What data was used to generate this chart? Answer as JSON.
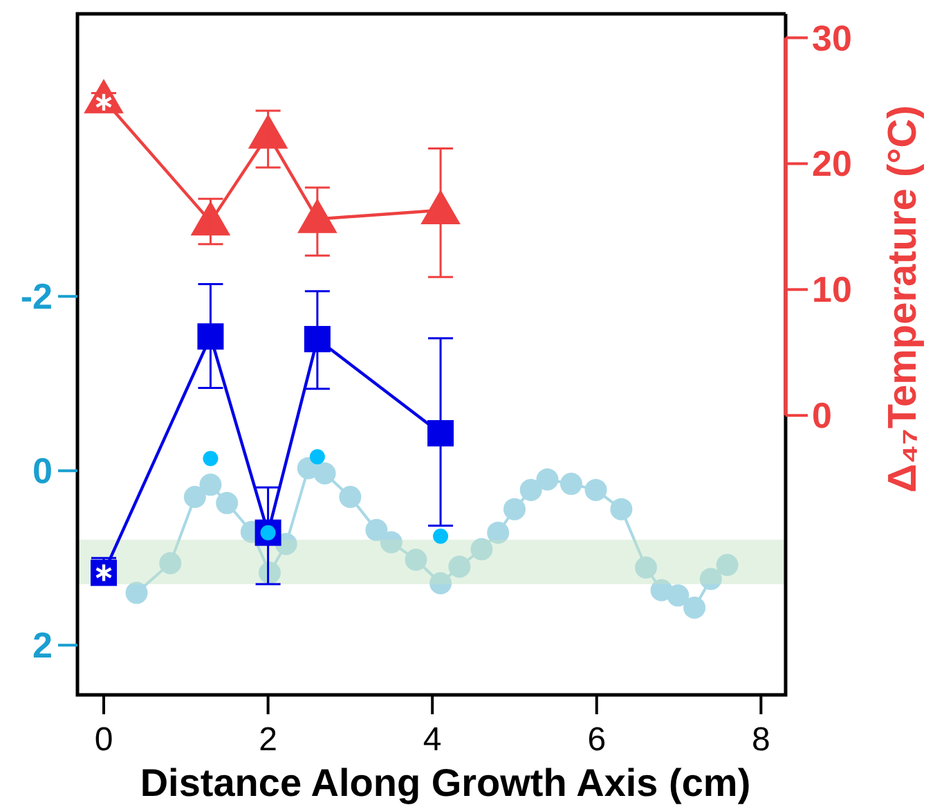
{
  "chart_data": {
    "type": "line",
    "xlabel": "Distance Along Growth Axis (cm)",
    "y2label": "Δ₄₇Temperature (°C)",
    "xlim": [
      -0.32,
      8.3
    ],
    "xticks": [
      0,
      2,
      4,
      6,
      8
    ],
    "ylim": [
      2.57,
      -5.24
    ],
    "yticks": [
      -2,
      0,
      2
    ],
    "y2lim": [
      -22.2,
      31.9
    ],
    "y2ticks": [
      0,
      10,
      20,
      30
    ],
    "line_style": "solid",
    "bands": [
      {
        "axis": "y",
        "from": 0.79,
        "to": 1.3,
        "color": "#c4e2c4"
      }
    ],
    "series": [
      {
        "marker": "circle",
        "color": "#a8d8e6",
        "x": [
          0.4,
          0.81,
          1.11,
          1.3,
          1.5,
          1.8,
          2.02,
          2.22,
          2.49,
          2.69,
          3.0,
          3.32,
          3.5,
          3.8,
          4.1,
          4.33,
          4.6,
          4.8,
          5.0,
          5.2,
          5.4,
          5.69,
          5.99,
          6.3,
          6.6,
          6.79,
          6.99,
          7.19,
          7.39,
          7.59
        ],
        "values": [
          1.4,
          1.06,
          0.3,
          0.16,
          0.37,
          0.7,
          1.17,
          0.84,
          -0.03,
          0.03,
          0.3,
          0.68,
          0.82,
          1.02,
          1.29,
          1.1,
          0.9,
          0.71,
          0.44,
          0.22,
          0.1,
          0.15,
          0.22,
          0.44,
          1.11,
          1.37,
          1.43,
          1.57,
          1.24,
          1.08
        ]
      },
      {
        "marker": "square",
        "color": "#0000e6",
        "x": [
          0,
          1.3,
          2,
          2.6,
          4.1
        ],
        "values": [
          1.17,
          -1.54,
          0.71,
          -1.51,
          -0.43
        ],
        "errors": [
          [
            1.0,
            1.24
          ],
          [
            -2.14,
            -0.95
          ],
          [
            0.19,
            1.3
          ],
          [
            -2.06,
            -0.94
          ],
          [
            -1.52,
            0.63
          ]
        ]
      },
      {
        "marker": "triangle",
        "color": "#ee4040",
        "axis": "y2",
        "x": [
          0,
          1.3,
          2,
          2.6,
          4.1
        ],
        "values": [
          25.1,
          15.4,
          22.3,
          15.6,
          16.3
        ],
        "errors": [
          0.5,
          1.8,
          [
            19.7,
            24.2
          ],
          [
            12.7,
            18.1
          ],
          [
            11.0,
            21.2
          ]
        ]
      },
      {
        "type": "scatter",
        "marker": "circle",
        "color": "#00bfff",
        "x": [
          1.3,
          2,
          2.6,
          4.1
        ],
        "values": [
          -0.14,
          0.71,
          -0.16,
          0.75
        ]
      }
    ]
  }
}
